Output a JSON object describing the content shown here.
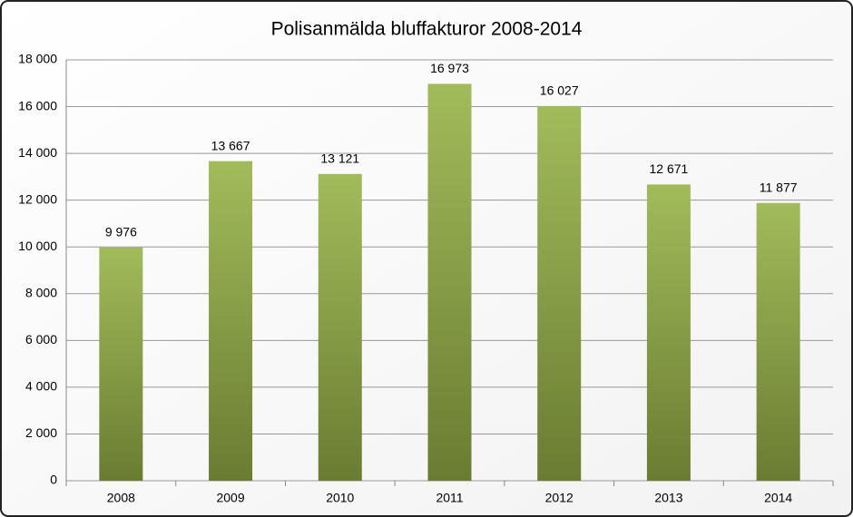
{
  "chart_data": {
    "type": "bar",
    "title": "Polisanmälda bluffakturor 2008-2014",
    "categories": [
      "2008",
      "2009",
      "2010",
      "2011",
      "2012",
      "2013",
      "2014"
    ],
    "values": [
      9976,
      13667,
      13121,
      16973,
      16027,
      12671,
      11877
    ],
    "value_labels": [
      "9 976",
      "13 667",
      "13 121",
      "16 973",
      "16 027",
      "12 671",
      "11 877"
    ],
    "color": "#8ba544",
    "ylim": [
      0,
      18000
    ],
    "yticks": [
      0,
      {
        "value": 2000,
        "label": "2 000"
      },
      {
        "value": 4000,
        "label": "4 000"
      },
      {
        "value": 6000,
        "label": "6 000"
      },
      {
        "value": 8000,
        "label": "8 000"
      },
      {
        "value": 10000,
        "label": "10 000"
      },
      {
        "value": 12000,
        "label": "12 000"
      },
      {
        "value": 14000,
        "label": "14 000"
      },
      {
        "value": 16000,
        "label": "16 000"
      },
      {
        "value": 18000,
        "label": "18 000"
      }
    ],
    "grid": true
  }
}
